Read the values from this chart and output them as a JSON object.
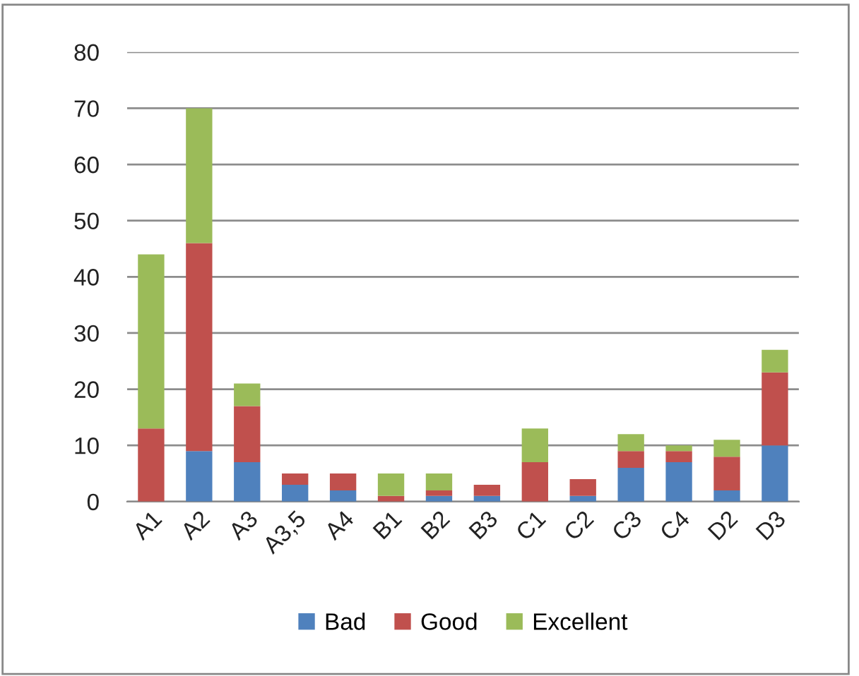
{
  "chart_data": {
    "type": "bar",
    "stacked": true,
    "categories": [
      "A1",
      "A2",
      "A3",
      "A3,5",
      "A4",
      "B1",
      "B2",
      "B3",
      "C1",
      "C2",
      "C3",
      "C4",
      "D2",
      "D3"
    ],
    "series": [
      {
        "name": "Bad",
        "color": "#4f81bd",
        "values": [
          0,
          9,
          7,
          3,
          2,
          0,
          1,
          1,
          0,
          1,
          6,
          7,
          2,
          10
        ]
      },
      {
        "name": "Good",
        "color": "#c0504d",
        "values": [
          13,
          37,
          10,
          2,
          3,
          1,
          1,
          2,
          7,
          3,
          3,
          2,
          6,
          13
        ]
      },
      {
        "name": "Excellent",
        "color": "#9bbb59",
        "values": [
          31,
          24,
          4,
          0,
          0,
          4,
          3,
          0,
          6,
          0,
          3,
          1,
          3,
          4
        ]
      }
    ],
    "ylim": [
      0,
      80
    ],
    "yticks": [
      0,
      10,
      20,
      30,
      40,
      50,
      60,
      70,
      80
    ],
    "grid": "y",
    "legend": "bottom"
  }
}
